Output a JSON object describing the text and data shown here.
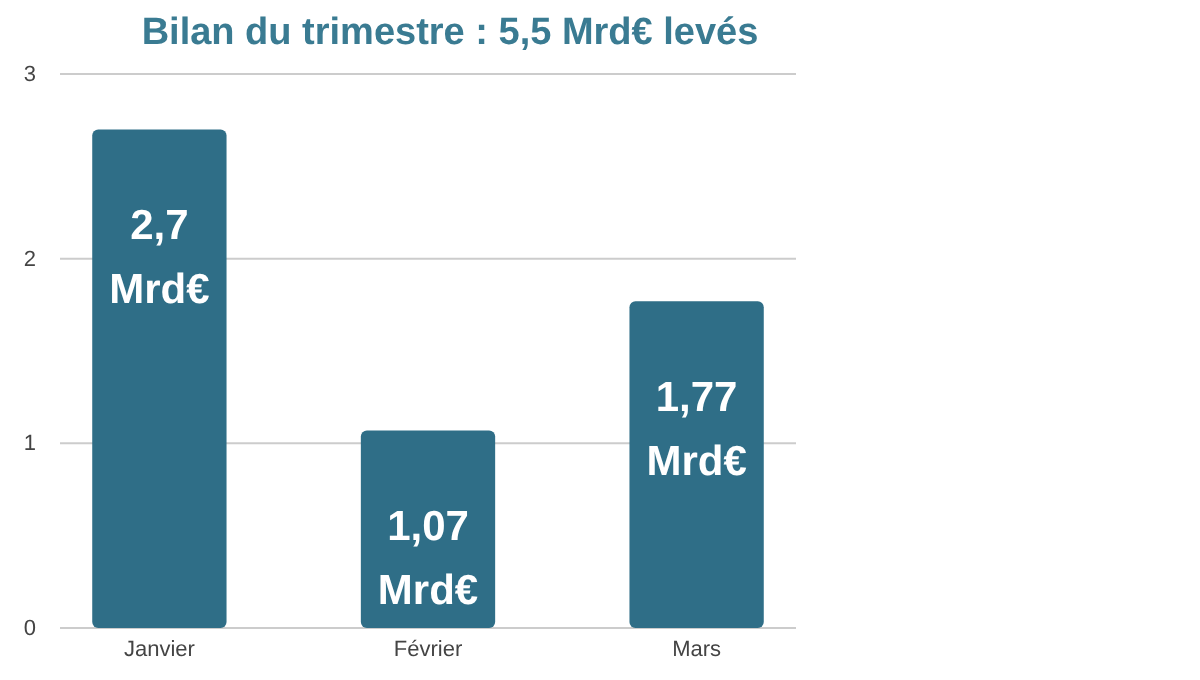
{
  "chart_data": {
    "type": "bar",
    "title": "Bilan du trimestre : 5,5 Mrd€ levés",
    "categories": [
      "Janvier",
      "Février",
      "Mars"
    ],
    "values": [
      2.7,
      1.07,
      1.77
    ],
    "value_labels": [
      "2,7 Mrd€",
      "1,07 Mrd€",
      "1,77 Mrd€"
    ],
    "color": "#2f6e87",
    "ylim": [
      0,
      3
    ],
    "yticks": [
      0,
      1,
      2,
      3
    ],
    "grid": "y"
  }
}
